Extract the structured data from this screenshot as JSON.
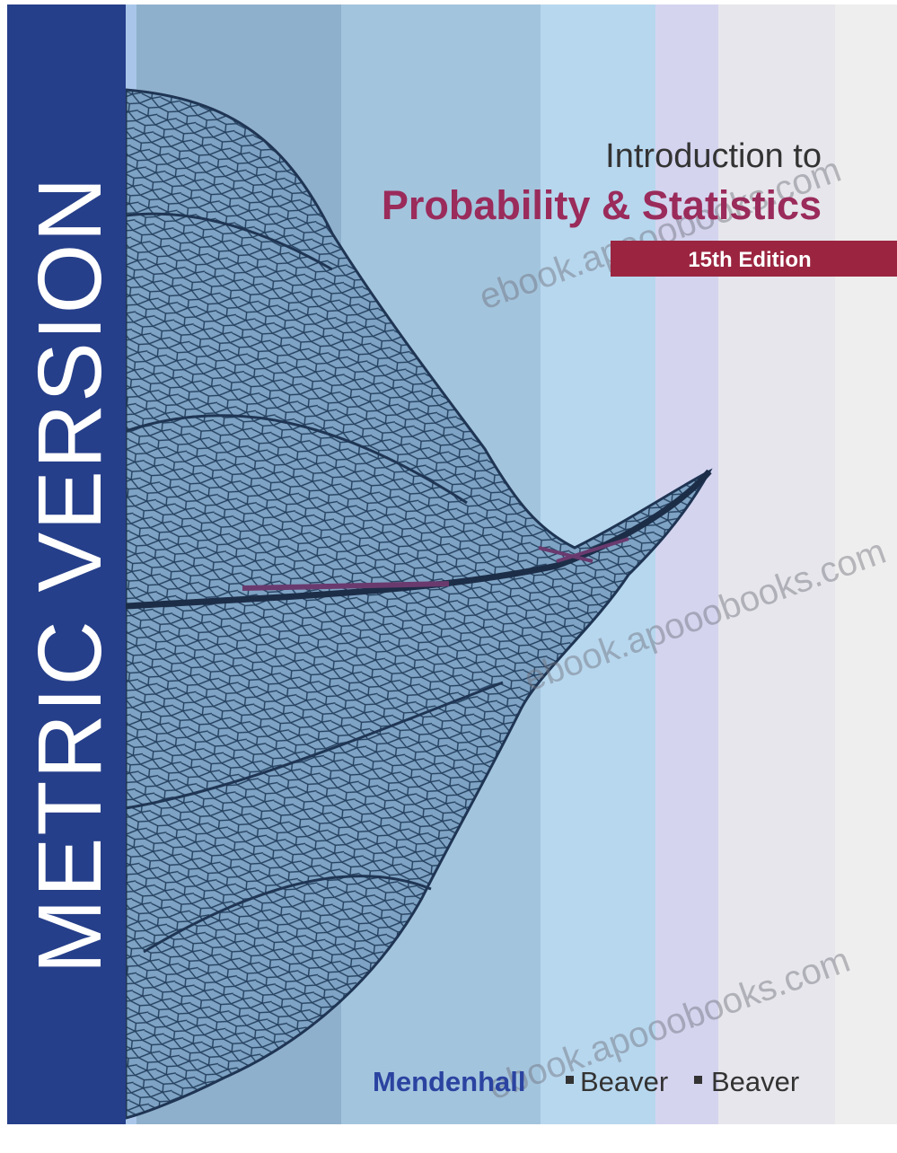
{
  "spine": {
    "text": "METRIC VERSION"
  },
  "title": {
    "line1": "Introduction to",
    "line2": "Probability & Statistics"
  },
  "edition": "15th Edition",
  "authors": [
    "Mendenhall",
    "Beaver",
    "Beaver"
  ],
  "watermark": "ebook.apooobooks.com"
}
